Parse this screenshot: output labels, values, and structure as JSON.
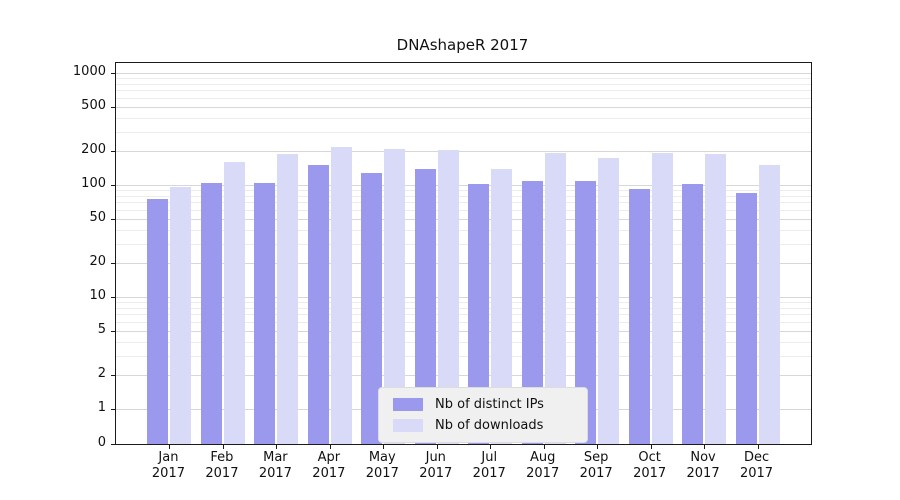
{
  "chart_data": {
    "type": "bar",
    "title": "DNAshapeR 2017",
    "categories": [
      "Jan",
      "Feb",
      "Mar",
      "Apr",
      "May",
      "Jun",
      "Jul",
      "Aug",
      "Sep",
      "Oct",
      "Nov",
      "Dec"
    ],
    "year_label": "2017",
    "series": [
      {
        "name": "Nb of distinct IPs",
        "color": "#9a99ee",
        "values": [
          75,
          105,
          105,
          150,
          128,
          138,
          102,
          108,
          108,
          93,
          102,
          85
        ]
      },
      {
        "name": "Nb of downloads",
        "color": "#d9d9f8",
        "values": [
          95,
          160,
          188,
          218,
          210,
          205,
          138,
          195,
          175,
          193,
          190,
          150
        ]
      }
    ],
    "yticks": [
      0,
      1,
      2,
      5,
      10,
      20,
      50,
      100,
      200,
      500,
      1000
    ],
    "minor_gridlines": [
      3,
      4,
      6,
      7,
      8,
      9,
      30,
      40,
      60,
      70,
      80,
      90,
      300,
      400,
      600,
      700,
      800,
      900
    ],
    "yscale": "symlog",
    "ylim": [
      0,
      1200
    ],
    "xlabel": "",
    "ylabel": "",
    "grid": "horizontal",
    "legend_position": "lower center"
  }
}
